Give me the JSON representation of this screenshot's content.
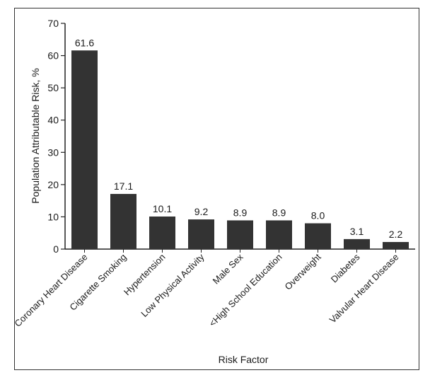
{
  "chart_data": {
    "type": "bar",
    "title": "",
    "xlabel": "Risk Factor",
    "ylabel": "Population Attributable Risk, %",
    "ylim": [
      0,
      70
    ],
    "yticks": [
      0,
      10,
      20,
      30,
      40,
      50,
      60,
      70
    ],
    "categories": [
      "Coronary Heart Disease",
      "Cigarette Smoking",
      "Hypertension",
      "Low Physical Activity",
      "Male Sex",
      "<High School Education",
      "Overweight",
      "Diabetes",
      "Valvular Heart Disease"
    ],
    "values": [
      61.6,
      17.1,
      10.1,
      9.2,
      8.9,
      8.9,
      8.0,
      3.1,
      2.2
    ],
    "value_labels": [
      "61.6",
      "17.1",
      "10.1",
      "9.2",
      "8.9",
      "8.9",
      "8.0",
      "3.1",
      "2.2"
    ],
    "bar_color": "#333333",
    "grid": false,
    "legend": "none"
  }
}
